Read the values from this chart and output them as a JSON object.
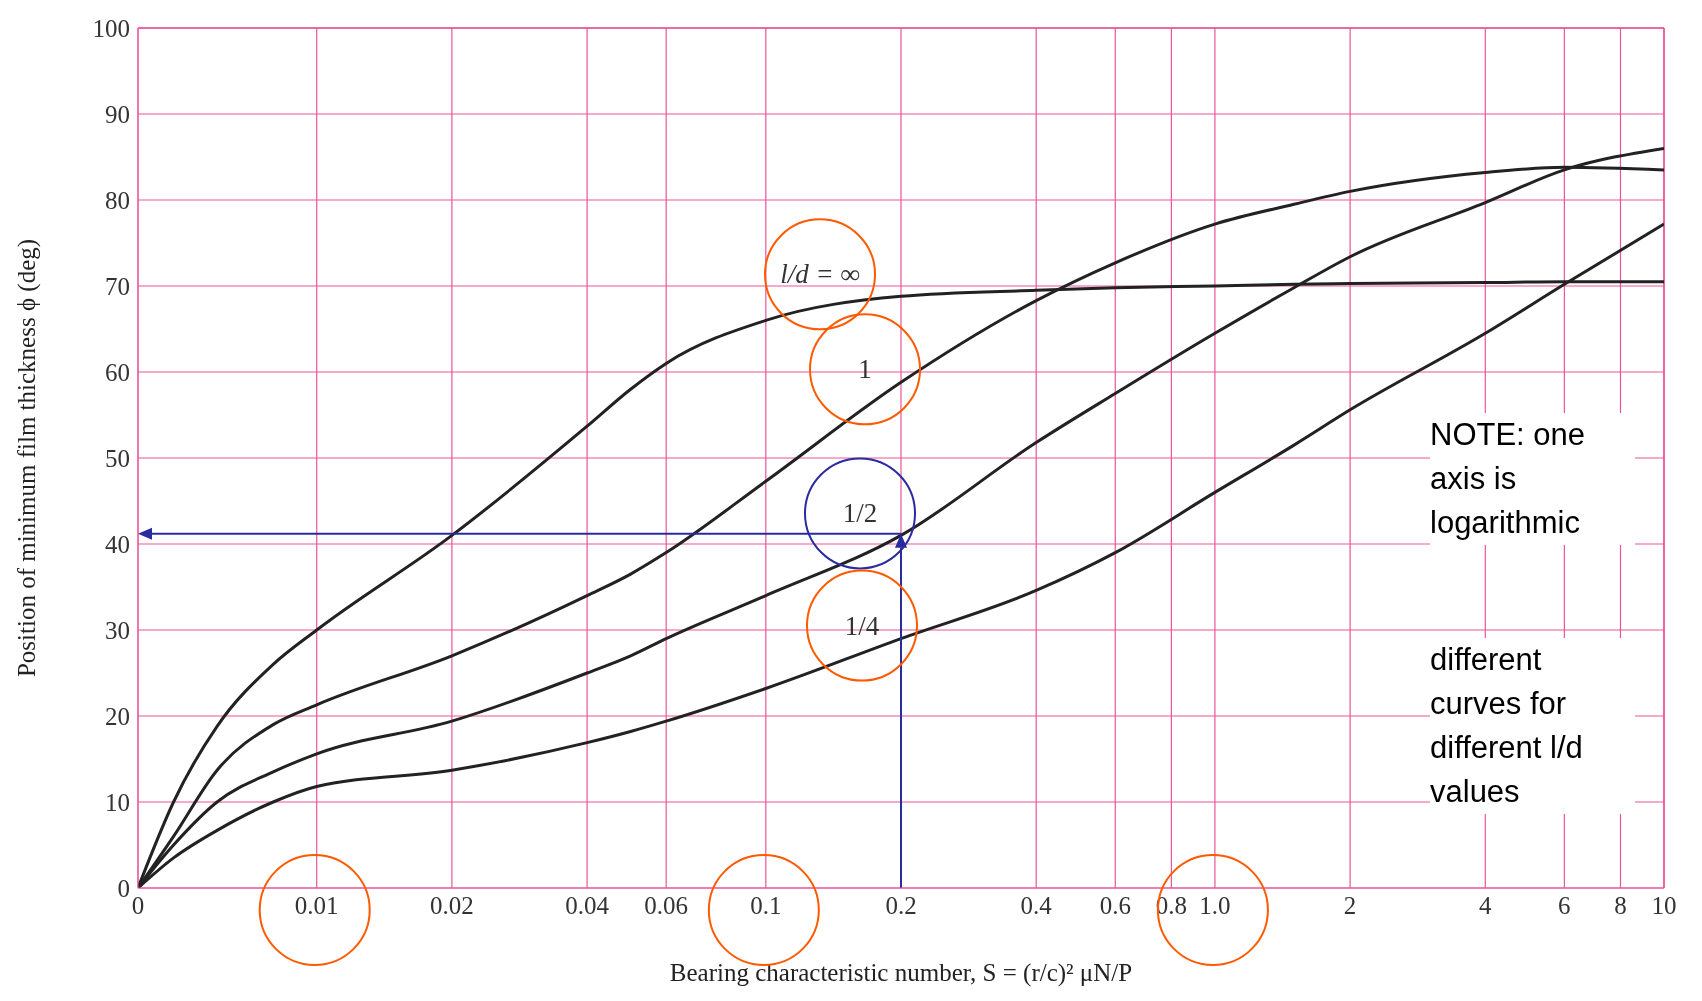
{
  "chart_data": {
    "type": "line",
    "xlabel": "Bearing characteristic number, S = (r/c)² μN/P",
    "ylabel": "Position of minimum film thickness ϕ (deg)",
    "x": [
      0.004,
      0.0048,
      0.006,
      0.008,
      0.01,
      0.02,
      0.04,
      0.05,
      0.06,
      0.1,
      0.2,
      0.4,
      0.6,
      1,
      1.5,
      2,
      4,
      6,
      10
    ],
    "series": [
      {
        "name": "l/d = ∞",
        "color": "#222222",
        "values": [
          0,
          10,
          18.8,
          26,
          30,
          41,
          53.7,
          58,
          61,
          66,
          68.8,
          69.5,
          69.8,
          70,
          70.2,
          70.3,
          70.4,
          70.5,
          70.5
        ]
      },
      {
        "name": "1",
        "color": "#222222",
        "values": [
          0,
          6,
          13.7,
          19,
          21.3,
          27,
          34,
          36.5,
          39,
          47.3,
          58.8,
          68.3,
          72.7,
          77.2,
          79.5,
          81,
          83.2,
          83.8,
          83.5
        ]
      },
      {
        "name": "1/2",
        "color": "#222222",
        "values": [
          0,
          5,
          10,
          13.5,
          15.6,
          19.4,
          25,
          27,
          29,
          34,
          41,
          51.8,
          57.5,
          64.5,
          69.8,
          73.4,
          79.7,
          83.5,
          86
        ]
      },
      {
        "name": "1/4",
        "color": "#222222",
        "values": [
          0,
          3.5,
          6.7,
          10,
          11.8,
          13.7,
          16.9,
          18.2,
          19.4,
          23.2,
          29,
          34.6,
          39,
          46,
          51.5,
          55.6,
          64.5,
          70.2,
          77.2
        ]
      }
    ],
    "log": "x",
    "xlim": [
      0.004,
      10
    ],
    "xticks": [
      {
        "value": 0.004,
        "label": "0"
      },
      0.01,
      0.02,
      0.04,
      0.06,
      0.1,
      0.2,
      0.4,
      0.6,
      0.8,
      {
        "value": 1,
        "label": "1.0"
      },
      2,
      4,
      6,
      8,
      10
    ],
    "ylim": [
      0,
      100
    ],
    "yticks": [
      0,
      10,
      20,
      30,
      40,
      50,
      60,
      70,
      80,
      90,
      100
    ],
    "grid": true,
    "legend": false,
    "marker": "none",
    "line_style": "solid",
    "ref_lines": [
      {
        "axis": "x",
        "value": 0.2,
        "color": "#2b2ba0"
      },
      {
        "axis": "y",
        "value": 41.2,
        "color": "#2b2ba0"
      }
    ],
    "annotations": [
      "NOTE: one axis is logarithmic",
      "different curves for different l/d values"
    ]
  }
}
